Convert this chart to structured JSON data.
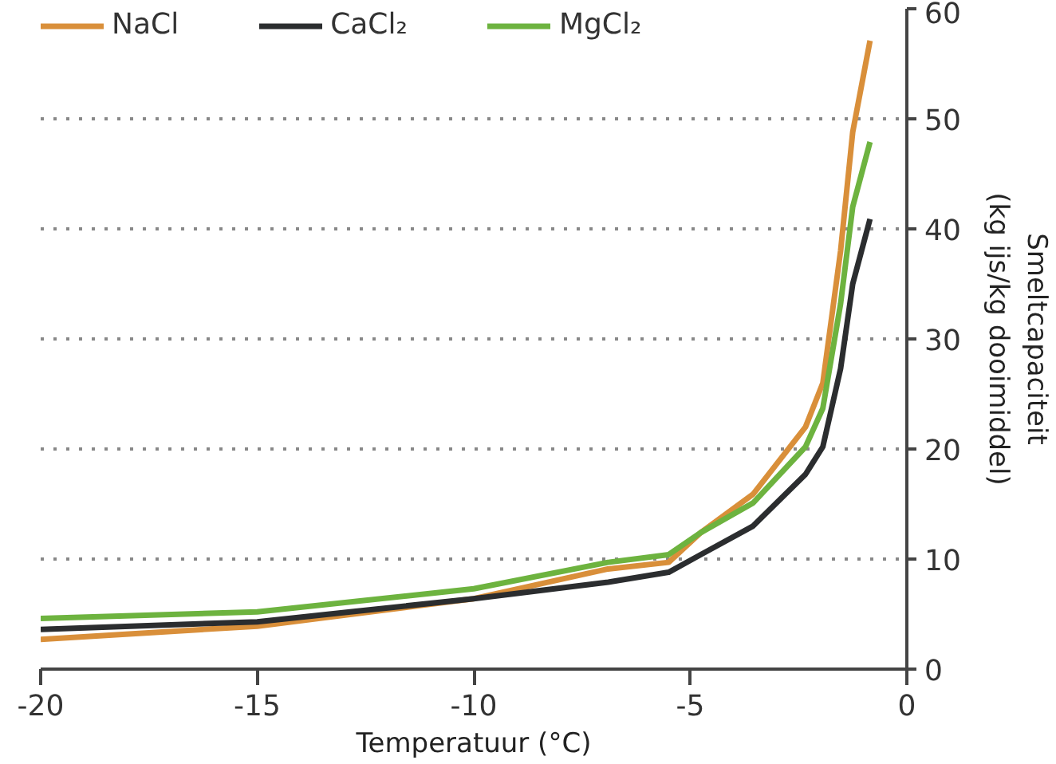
{
  "chart_data": {
    "type": "line",
    "xlabel": "Temperatuur (°C)",
    "ylabel": "Smeltcapaciteit\n(kg ijs/kg dooimiddel)",
    "x": [
      -20,
      -15,
      -10,
      -6.9,
      -5.5,
      -4.76,
      -3.55,
      -2.34,
      -1.94,
      -1.53,
      -1.25,
      -0.85
    ],
    "series": [
      {
        "name": "NaCl",
        "color": "#d98f3a",
        "values": [
          2.7,
          3.9,
          6.4,
          9.1,
          9.7,
          12.4,
          15.9,
          22,
          26,
          38,
          48.8,
          57.1
        ]
      },
      {
        "name": "CaCl₂",
        "color": "#2b2d2f",
        "values": [
          3.6,
          4.3,
          6.4,
          7.9,
          8.8,
          10.4,
          13.0,
          17.7,
          20.2,
          27.3,
          35,
          40.9
        ]
      },
      {
        "name": "MgCl₂",
        "color": "#6db33f",
        "values": [
          4.6,
          5.2,
          7.3,
          9.7,
          10.4,
          12.4,
          15.1,
          20.2,
          23.7,
          33.2,
          42,
          47.9
        ]
      }
    ],
    "xlim": [
      -20,
      0
    ],
    "ylim": [
      0,
      60
    ],
    "xticks": [
      {
        "value": -20,
        "label": "-20"
      },
      {
        "value": -15,
        "label": "-15"
      },
      {
        "value": -10,
        "label": "-10"
      },
      {
        "value": -5,
        "label": "-5"
      },
      0
    ],
    "yticks": [
      0,
      10,
      20,
      30,
      40,
      50,
      60
    ],
    "grid": "y",
    "legend": "top",
    "line_style": "solid",
    "marker": "none"
  }
}
